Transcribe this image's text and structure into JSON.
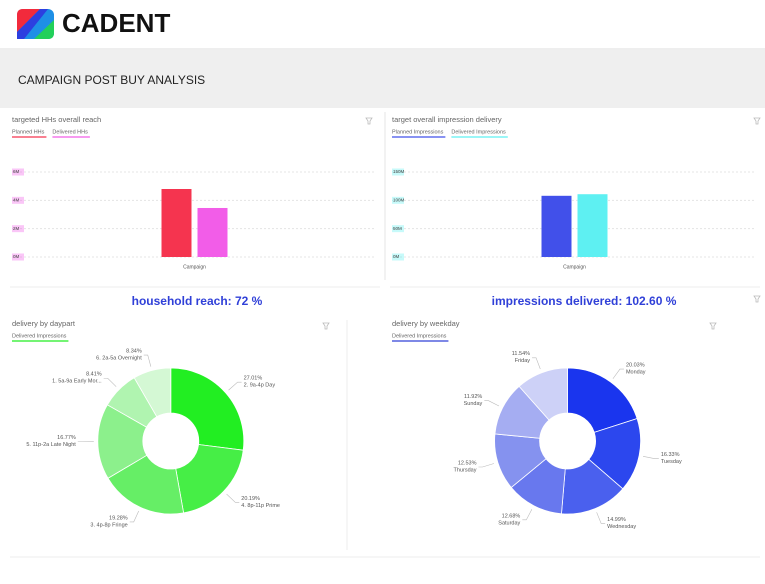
{
  "header": {
    "logo": "CADENT",
    "title": "CAMPAIGN POST BUY ANALYSIS"
  },
  "kpis": [
    "household reach: 72 %",
    "impressions delivered: 102.60 %"
  ],
  "chart_data": [
    {
      "type": "bar",
      "title": "targeted HHs overall reach",
      "categories": [
        "Campaign"
      ],
      "series": [
        {
          "name": "Planned HHs",
          "color": "#f5344f",
          "values": [
            4.8
          ]
        },
        {
          "name": "Delivered HHs",
          "color": "#f25de8",
          "values": [
            3.46
          ]
        }
      ],
      "ylim": [
        0,
        6
      ],
      "yticks": [
        {
          "value": 0,
          "label": "0M"
        },
        {
          "value": 2,
          "label": "2M"
        },
        {
          "value": 4,
          "label": "4M"
        },
        {
          "value": 6,
          "label": "6M"
        }
      ],
      "grid": true
    },
    {
      "type": "bar",
      "title": "target overall impression delivery",
      "categories": [
        "Campaign"
      ],
      "series": [
        {
          "name": "Planned Impressions",
          "color": "#4150ea",
          "values": [
            108
          ]
        },
        {
          "name": "Delivered Impressions",
          "color": "#5ef0f2",
          "values": [
            110.8
          ]
        }
      ],
      "ylim": [
        0,
        150
      ],
      "yticks": [
        {
          "value": 0,
          "label": "0M"
        },
        {
          "value": 50,
          "label": "50M"
        },
        {
          "value": 100,
          "label": "100M"
        },
        {
          "value": 150,
          "label": "150M"
        }
      ],
      "grid": true
    },
    {
      "type": "pie",
      "title": "delivery by daypart",
      "categories": [
        "2. 9a-4p Day",
        "4. 8p-11p Prime",
        "3. 4p-8p Fringe",
        "5. 11p-2a Late Night",
        "1. 5a-9a Early Mor...",
        "6. 2a-5a Overnight"
      ],
      "series": [
        {
          "name": "Delivered Impressions",
          "color": "#22ee22",
          "values": [
            27.01,
            20.19,
            19.28,
            16.77,
            8.41,
            8.34
          ],
          "value_labels": [
            "27.01%",
            "20.19%",
            "19.28%",
            "16.77%",
            "8.41%",
            "8.34%"
          ],
          "colors": [
            "#22ee22",
            "#46ee46",
            "#66ee66",
            "#8cf08c",
            "#b0f4b0",
            "#d4f8d4"
          ]
        }
      ]
    },
    {
      "type": "pie",
      "title": "delivery by weekday",
      "categories": [
        "Monday",
        "Tuesday",
        "Wednesday",
        "Saturday",
        "Thursday",
        "Sunday",
        "Friday"
      ],
      "series": [
        {
          "name": "Delivered Impressions",
          "color": "#3040d8",
          "values": [
            20.03,
            16.33,
            14.99,
            12.68,
            12.53,
            11.92,
            11.54
          ],
          "value_labels": [
            "20.03%",
            "16.33%",
            "14.99%",
            "12.68%",
            "12.53%",
            "11.92%",
            "11.54%"
          ],
          "colors": [
            "#1a35ee",
            "#2c47ee",
            "#4a60ee",
            "#6878ee",
            "#8592ef",
            "#a5adf2",
            "#cdd1f7"
          ]
        }
      ]
    }
  ]
}
